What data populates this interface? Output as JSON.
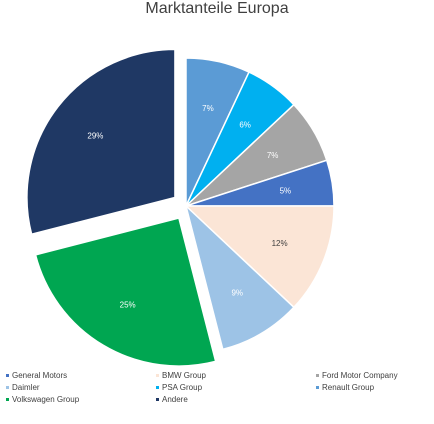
{
  "chart_data": {
    "type": "pie",
    "title": "Marktanteile Europa",
    "slices": [
      {
        "name": "Renault Group",
        "value": 7,
        "label": "7%",
        "color": "#5b9bd5"
      },
      {
        "name": "PSA Group",
        "value": 6,
        "label": "6%",
        "color": "#00b0f0"
      },
      {
        "name": "Ford Motor Company",
        "value": 7,
        "label": "7%",
        "color": "#a5a5a5"
      },
      {
        "name": "General Motors",
        "value": 5,
        "label": "5%",
        "color": "#4472c4"
      },
      {
        "name": "BMW Group",
        "value": 12,
        "label": "12%",
        "color": "#fbe5d6"
      },
      {
        "name": "Daimler",
        "value": 9,
        "label": "9%",
        "color": "#9dc3e6"
      },
      {
        "name": "Volkswagen Group",
        "value": 25,
        "label": "25%",
        "color": "#00a651",
        "exploded": true
      },
      {
        "name": "Andere",
        "value": 29,
        "label": "29%",
        "color": "#1f3864",
        "exploded": true
      }
    ],
    "legend": {
      "position": "bottom",
      "entries": [
        {
          "name": "General Motors",
          "color": "#4472c4"
        },
        {
          "name": "BMW Group",
          "color": "#fbe5d6"
        },
        {
          "name": "Ford Motor Company",
          "color": "#a5a5a5"
        },
        {
          "name": "Daimler",
          "color": "#9dc3e6"
        },
        {
          "name": "PSA Group",
          "color": "#00b0f0"
        },
        {
          "name": "Renault Group",
          "color": "#5b9bd5"
        },
        {
          "name": "Volkswagen Group",
          "color": "#00a651"
        },
        {
          "name": "Andere",
          "color": "#1f3864"
        }
      ]
    }
  }
}
